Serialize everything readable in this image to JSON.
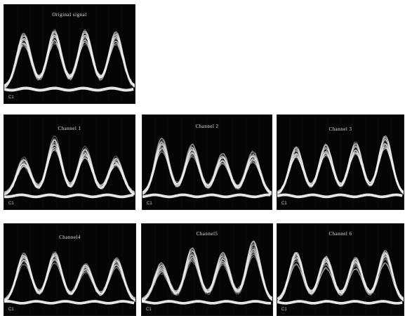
{
  "panels": [
    {
      "id": "original",
      "title": "Original signal",
      "channel_label": "C1",
      "peaks": [
        0.85,
        0.9,
        0.9,
        0.88
      ],
      "trace_color": "#f2f2f2"
    },
    {
      "id": "ch1",
      "title": "Channel 1",
      "channel_label": "C1",
      "peaks": [
        0.6,
        0.95,
        0.78,
        0.62
      ],
      "trace_color": "#f2f2f2"
    },
    {
      "id": "ch2",
      "title": "Channel 2",
      "channel_label": "C1",
      "peaks": [
        0.9,
        0.8,
        0.65,
        0.68
      ],
      "trace_color": "#f2f2f2"
    },
    {
      "id": "ch3",
      "title": "Channel 3",
      "channel_label": "C1",
      "peaks": [
        0.78,
        0.82,
        0.85,
        0.97
      ],
      "trace_color": "#f2f2f2"
    },
    {
      "id": "ch4",
      "title": "Channel4",
      "channel_label": "C1",
      "peaks": [
        0.8,
        0.82,
        0.62,
        0.72
      ],
      "trace_color": "#f2f2f2"
    },
    {
      "id": "ch5",
      "title": "Channel5",
      "channel_label": "C1",
      "peaks": [
        0.62,
        0.88,
        0.8,
        1.0
      ],
      "trace_color": "#f2f2f2"
    },
    {
      "id": "ch6",
      "title": "Channel 6",
      "channel_label": "C1",
      "peaks": [
        0.8,
        0.72,
        0.7,
        0.82
      ],
      "trace_color": "#f2f2f2"
    }
  ]
}
